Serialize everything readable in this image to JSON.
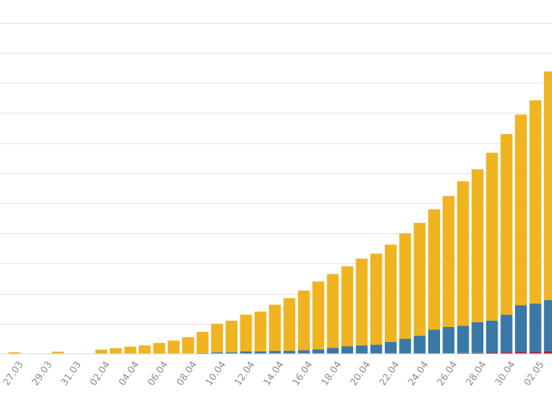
{
  "chart_data": {
    "type": "bar",
    "stacked": true,
    "title": "",
    "xlabel": "",
    "ylabel": "",
    "grid": true,
    "legend": "none",
    "ylim": [
      0,
      12
    ],
    "y_gridlines": [
      1,
      2,
      3,
      4,
      5,
      6,
      7,
      8,
      9,
      10,
      11,
      12
    ],
    "categories": [
      "26.03",
      "27.03",
      "28.03",
      "29.03",
      "30.03",
      "31.03",
      "01.04",
      "02.04",
      "03.04",
      "04.04",
      "05.04",
      "06.04",
      "07.04",
      "08.04",
      "09.04",
      "10.04",
      "11.04",
      "12.04",
      "13.04",
      "14.04",
      "15.04",
      "16.04",
      "17.04",
      "18.04",
      "19.04",
      "20.04",
      "21.04",
      "22.04",
      "23.04",
      "24.04",
      "25.04",
      "26.04",
      "27.04",
      "28.04",
      "29.04",
      "30.04",
      "01.05",
      "02.05",
      "03.05"
    ],
    "x_tick_labels": [
      "27.03",
      "29.03",
      "31.03",
      "02.04",
      "04.04",
      "06.04",
      "08.04",
      "10.04",
      "12.04",
      "14.04",
      "16.04",
      "18.04",
      "20.04",
      "22.04",
      "24.04",
      "26.04",
      "28.04",
      "30.04",
      "02.05"
    ],
    "series": [
      {
        "color": "#a51c2f",
        "values": [
          0,
          0,
          0,
          0,
          0,
          0,
          0,
          0,
          0,
          0,
          0,
          0,
          0,
          0,
          0,
          0,
          0,
          0,
          0,
          0,
          0,
          0,
          0,
          0,
          0,
          0,
          0,
          0,
          0,
          0,
          0,
          0.02,
          0.03,
          0.03,
          0.04,
          0.05,
          0.06,
          0.07,
          0.08
        ]
      },
      {
        "color": "#3a78a8",
        "values": [
          0,
          0,
          0,
          0,
          0,
          0,
          0,
          0,
          0,
          0,
          0,
          0,
          0,
          0,
          0.03,
          0.05,
          0.05,
          0.08,
          0.08,
          0.1,
          0.1,
          0.12,
          0.15,
          0.2,
          0.25,
          0.28,
          0.3,
          0.4,
          0.5,
          0.6,
          0.8,
          0.87,
          0.9,
          1.02,
          1.06,
          1.25,
          1.55,
          1.6,
          1.7
        ]
      },
      {
        "color": "#efb420",
        "values": [
          0,
          0.05,
          0,
          0,
          0.07,
          0,
          0,
          0.14,
          0.19,
          0.24,
          0.28,
          0.36,
          0.44,
          0.55,
          0.7,
          0.95,
          1.05,
          1.22,
          1.32,
          1.53,
          1.75,
          1.98,
          2.25,
          2.45,
          2.66,
          2.88,
          3.03,
          3.23,
          3.5,
          3.75,
          4.0,
          4.35,
          4.8,
          5.08,
          5.58,
          6.0,
          6.34,
          6.75,
          7.6
        ]
      }
    ]
  }
}
